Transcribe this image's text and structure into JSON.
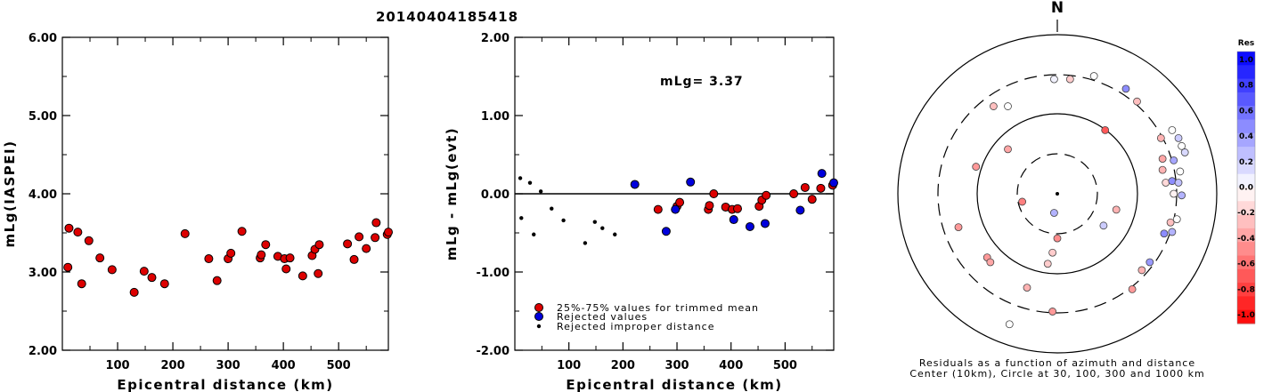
{
  "chart_data": [
    {
      "type": "scatter",
      "title": "20140404185418",
      "xlabel": "Epicentral distance (km)",
      "ylabel": "mLg(IASPEI)",
      "xlim": [
        0,
        590
      ],
      "ylim": [
        2.0,
        6.0
      ],
      "xticks": [
        "100",
        "200",
        "300",
        "400",
        "500"
      ],
      "yticks": [
        "2.00",
        "3.00",
        "4.00",
        "5.00",
        "6.00"
      ],
      "grid": false,
      "points": [
        [
          10,
          3.06
        ],
        [
          12,
          3.56
        ],
        [
          28,
          3.51
        ],
        [
          35,
          2.85
        ],
        [
          48,
          3.4
        ],
        [
          68,
          3.18
        ],
        [
          90,
          3.03
        ],
        [
          130,
          2.74
        ],
        [
          148,
          3.01
        ],
        [
          162,
          2.93
        ],
        [
          185,
          2.85
        ],
        [
          222,
          3.49
        ],
        [
          265,
          3.17
        ],
        [
          280,
          2.89
        ],
        [
          300,
          3.17
        ],
        [
          305,
          3.24
        ],
        [
          325,
          3.52
        ],
        [
          358,
          3.18
        ],
        [
          360,
          3.22
        ],
        [
          368,
          3.35
        ],
        [
          390,
          3.2
        ],
        [
          402,
          3.17
        ],
        [
          405,
          3.04
        ],
        [
          412,
          3.18
        ],
        [
          435,
          2.95
        ],
        [
          452,
          3.21
        ],
        [
          457,
          3.29
        ],
        [
          463,
          2.98
        ],
        [
          465,
          3.35
        ],
        [
          516,
          3.36
        ],
        [
          528,
          3.16
        ],
        [
          537,
          3.45
        ],
        [
          550,
          3.3
        ],
        [
          566,
          3.44
        ],
        [
          568,
          3.63
        ],
        [
          588,
          3.48
        ],
        [
          590,
          3.51
        ]
      ]
    },
    {
      "type": "scatter",
      "xlabel": "Epicentral distance (km)",
      "ylabel": "mLg - mLg(evt)",
      "xlim": [
        0,
        590
      ],
      "ylim": [
        -2.0,
        2.0
      ],
      "xticks": [
        "100",
        "200",
        "300",
        "400",
        "500"
      ],
      "yticks": [
        "-2.00",
        "-1.00",
        "0.00",
        "1.00",
        "2.00"
      ],
      "annotation": "mLg= 3.37",
      "legend": {
        "placement": "bottom-left",
        "entries": [
          {
            "label": "25%-75% values for trimmed mean",
            "color": "#dd0000"
          },
          {
            "label": "Rejected values",
            "color": "#0000dd"
          },
          {
            "label": "Rejected improper distance",
            "color": "#000000"
          }
        ]
      },
      "series": [
        {
          "values": [
            [
              265,
              -0.2
            ],
            [
              300,
              -0.16
            ],
            [
              305,
              -0.11
            ],
            [
              358,
              -0.2
            ],
            [
              360,
              -0.15
            ],
            [
              368,
              0.0
            ],
            [
              390,
              -0.17
            ],
            [
              402,
              -0.2
            ],
            [
              412,
              -0.19
            ],
            [
              452,
              -0.16
            ],
            [
              457,
              -0.08
            ],
            [
              465,
              -0.02
            ],
            [
              516,
              0.0
            ],
            [
              537,
              0.08
            ],
            [
              550,
              -0.07
            ],
            [
              566,
              0.07
            ],
            [
              588,
              0.11
            ]
          ]
        },
        {
          "values": [
            [
              222,
              0.12
            ],
            [
              280,
              -0.48
            ],
            [
              297,
              -0.2
            ],
            [
              325,
              0.15
            ],
            [
              405,
              -0.33
            ],
            [
              435,
              -0.42
            ],
            [
              463,
              -0.38
            ],
            [
              528,
              -0.21
            ],
            [
              568,
              0.26
            ],
            [
              590,
              0.14
            ]
          ]
        },
        {
          "values": [
            [
              10,
              0.2
            ],
            [
              12,
              -0.31
            ],
            [
              28,
              0.14
            ],
            [
              35,
              -0.52
            ],
            [
              48,
              0.03
            ],
            [
              68,
              -0.19
            ],
            [
              90,
              -0.34
            ],
            [
              130,
              -0.63
            ],
            [
              148,
              -0.36
            ],
            [
              162,
              -0.44
            ],
            [
              185,
              -0.52
            ]
          ]
        }
      ]
    },
    {
      "type": "scatter",
      "title": "N",
      "caption_line1": "Residuals as a function of azimuth and distance",
      "caption_line2": "Center (10km), Circle at 30, 100, 300 and 1000 km",
      "colorbar": {
        "label": "Res",
        "ticks": [
          "1.0",
          "0.8",
          "0.6",
          "0.4",
          "0.2",
          "0.0",
          "-0.2",
          "-0.4",
          "-0.6",
          "-0.8",
          "-1.0"
        ],
        "positive_color": "#0000ff",
        "negative_color": "#ff0000"
      },
      "stations": [
        [
          -0.02,
          -0.72,
          0.05
        ],
        [
          0.08,
          -0.72,
          -0.2
        ],
        [
          0.23,
          -0.74,
          0.0
        ],
        [
          0.43,
          -0.66,
          0.45
        ],
        [
          0.5,
          -0.58,
          -0.25
        ],
        [
          -0.4,
          -0.55,
          -0.25
        ],
        [
          -0.31,
          -0.55,
          0.0
        ],
        [
          0.3,
          -0.4,
          -0.65
        ],
        [
          0.65,
          -0.35,
          -0.3
        ],
        [
          0.72,
          -0.4,
          0.0
        ],
        [
          0.76,
          -0.35,
          0.2
        ],
        [
          0.78,
          -0.3,
          0.0
        ],
        [
          0.8,
          -0.26,
          0.15
        ],
        [
          -0.31,
          -0.28,
          -0.35
        ],
        [
          0.66,
          -0.22,
          -0.35
        ],
        [
          0.73,
          -0.21,
          0.35
        ],
        [
          -0.51,
          -0.17,
          -0.4
        ],
        [
          0.77,
          -0.14,
          0.0
        ],
        [
          0.66,
          -0.15,
          -0.3
        ],
        [
          0.68,
          -0.07,
          -0.15
        ],
        [
          0.72,
          -0.08,
          0.45
        ],
        [
          0.76,
          -0.07,
          0.25
        ],
        [
          0.73,
          0.0,
          -0.05
        ],
        [
          0.78,
          0.01,
          0.3
        ],
        [
          -0.22,
          0.05,
          -0.5
        ],
        [
          -0.02,
          0.12,
          0.3
        ],
        [
          0.37,
          0.1,
          -0.3
        ],
        [
          0.71,
          0.18,
          -0.25
        ],
        [
          0.75,
          0.16,
          0.0
        ],
        [
          0.72,
          0.24,
          0.3
        ],
        [
          0.67,
          0.25,
          0.45
        ],
        [
          -0.62,
          0.21,
          -0.4
        ],
        [
          0.0,
          0.28,
          -0.45
        ],
        [
          0.29,
          0.2,
          0.2
        ],
        [
          -0.03,
          0.37,
          -0.2
        ],
        [
          -0.44,
          0.4,
          -0.4
        ],
        [
          -0.06,
          0.44,
          -0.2
        ],
        [
          -0.42,
          0.43,
          -0.35
        ],
        [
          0.58,
          0.43,
          0.4
        ],
        [
          0.53,
          0.48,
          -0.3
        ],
        [
          -0.19,
          0.59,
          -0.3
        ],
        [
          0.47,
          0.6,
          -0.4
        ],
        [
          -0.03,
          0.74,
          -0.4
        ],
        [
          -0.3,
          0.82,
          0.0
        ]
      ]
    }
  ]
}
